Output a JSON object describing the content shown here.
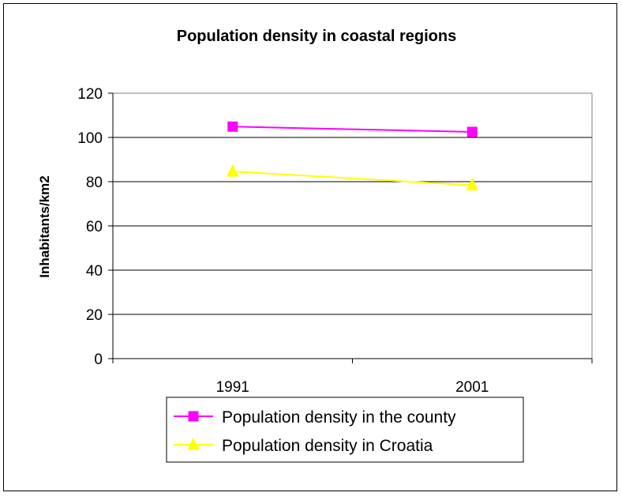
{
  "chart_data": {
    "type": "line",
    "title": "Population density in coastal regions",
    "xlabel": "",
    "ylabel": "Inhabitants/km2",
    "categories": [
      "1991",
      "2001"
    ],
    "ylim": [
      0,
      120
    ],
    "yticks": [
      "0",
      "20",
      "40",
      "60",
      "80",
      "100",
      "120"
    ],
    "grid": true,
    "legend_position": "bottom",
    "series": [
      {
        "name": "Population density in the county",
        "values": [
          104.9,
          102.5
        ],
        "color": "#ff00ff",
        "marker": "square"
      },
      {
        "name": "Population density in Croatia",
        "values": [
          84.6,
          78.4
        ],
        "color": "#ffff00",
        "marker": "triangle"
      }
    ]
  }
}
